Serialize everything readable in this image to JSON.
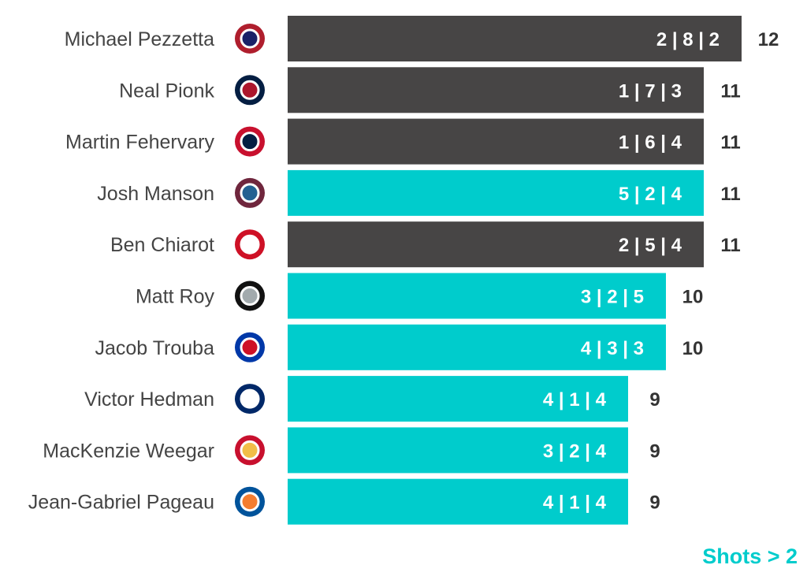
{
  "chart_data": {
    "type": "bar",
    "orientation": "horizontal",
    "categories": [
      "Michael Pezzetta",
      "Neal Pionk",
      "Martin Fehervary",
      "Josh Manson",
      "Ben Chiarot",
      "Matt Roy",
      "Jacob Trouba",
      "Victor Hedman",
      "MacKenzie Weegar",
      "Jean-Gabriel Pageau"
    ],
    "values": [
      12,
      11,
      11,
      11,
      11,
      10,
      10,
      9,
      9,
      9
    ],
    "breakdown_labels": [
      "2 | 8 | 2",
      "1 | 7 | 3",
      "1 | 6 | 4",
      "5 | 2 | 4",
      "2 | 5 | 4",
      "3 | 2 | 5",
      "4 | 3 | 3",
      "4 | 1 | 4",
      "3 | 2 | 4",
      "4 | 1 | 4"
    ],
    "shots_gt_2": [
      false,
      false,
      false,
      true,
      false,
      true,
      true,
      true,
      true,
      true
    ],
    "team_logos": [
      "canadiens-logo-icon",
      "jets-logo-icon",
      "capitals-logo-icon",
      "avalanche-logo-icon",
      "red-wings-logo-icon",
      "kings-logo-icon",
      "rangers-logo-icon",
      "lightning-logo-icon",
      "flames-logo-icon",
      "islanders-logo-icon"
    ],
    "xlim": [
      0,
      12
    ],
    "grid": false,
    "legend": {
      "label": "Shots > 2",
      "placement": "bottom-right"
    },
    "colors": {
      "default": "#474545",
      "highlight": "#00CCCC"
    }
  }
}
